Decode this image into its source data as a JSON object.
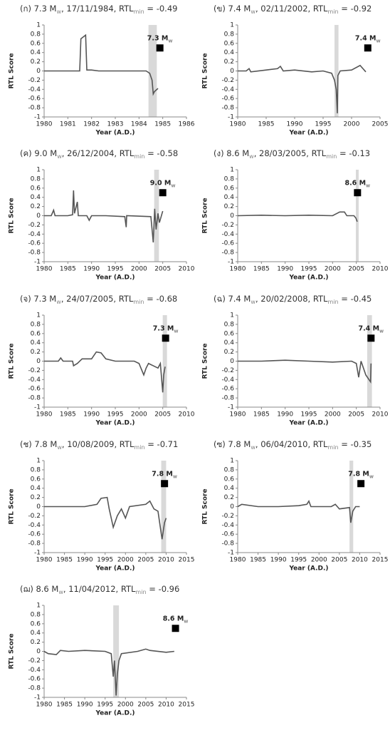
{
  "chart_data": [
    {
      "type": "line",
      "title_parts": [
        "(ก) 7.3 M",
        "w",
        ", 17/11/1984, RTL",
        "min",
        " = -0.49"
      ],
      "xlabel": "Year (A.D.)",
      "ylabel": "RTL Score",
      "xlim": [
        1980,
        1986
      ],
      "xticks": [
        1980,
        1981,
        1982,
        1983,
        1984,
        1985,
        1986
      ],
      "ylim": [
        -1,
        1
      ],
      "yticks": [
        -1,
        -0.8,
        -0.6,
        -0.4,
        -0.2,
        0,
        0.2,
        0.4,
        0.6,
        0.8,
        1
      ],
      "shade": [
        1984.4,
        1984.75
      ],
      "shade_color": "#d9d9d9",
      "event": {
        "x": 1984.88,
        "y": 0.5,
        "label_parts": [
          "7.3 M",
          "w"
        ],
        "color": "#000000"
      },
      "series": [
        {
          "color": "#555555",
          "x": [
            1980,
            1981.5,
            1981.55,
            1981.75,
            1981.8,
            1982,
            1982.3,
            1984.3,
            1984.45,
            1984.55,
            1984.6,
            1984.65,
            1984.8
          ],
          "values": [
            0,
            0,
            0.7,
            0.78,
            0.02,
            0.02,
            0,
            0,
            -0.05,
            -0.2,
            -0.5,
            -0.45,
            -0.38
          ]
        }
      ]
    },
    {
      "type": "line",
      "title_parts": [
        "(ข) 7.4 M",
        "w",
        ", 02/11/2002, RTL",
        "min",
        " = -0.92"
      ],
      "xlabel": "Year (A.D.)",
      "ylabel": "RTL Score",
      "xlim": [
        1980,
        2005
      ],
      "xticks": [
        1980,
        1985,
        1990,
        1995,
        2000,
        2005
      ],
      "ylim": [
        -1,
        1
      ],
      "yticks": [
        -1,
        -0.8,
        -0.6,
        -0.4,
        -0.2,
        0,
        0.2,
        0.4,
        0.6,
        0.8,
        1
      ],
      "shade": [
        1997,
        1997.7
      ],
      "shade_color": "#d9d9d9",
      "event": {
        "x": 2002.85,
        "y": 0.5,
        "label_parts": [
          "7.4 M",
          "w"
        ],
        "color": "#000000"
      },
      "series": [
        {
          "color": "#555555",
          "x": [
            1980,
            1981.5,
            1982,
            1982.3,
            1985,
            1987,
            1987.5,
            1988,
            1990,
            1993,
            1995,
            1996.5,
            1997,
            1997.3,
            1997.5,
            1997.6,
            1998,
            2000,
            2001.5,
            2002,
            2002.5
          ],
          "values": [
            0,
            0,
            0.05,
            -0.02,
            0.02,
            0.05,
            0.1,
            0,
            0.02,
            -0.02,
            0,
            -0.05,
            -0.2,
            -0.4,
            -0.92,
            -0.1,
            0,
            0.02,
            0.12,
            0.05,
            -0.02
          ]
        }
      ]
    },
    {
      "type": "line",
      "title_parts": [
        "(ค) 9.0 M",
        "w",
        ", 26/12/2004, RTL",
        "min",
        " = -0.58"
      ],
      "xlabel": "Year (A.D.)",
      "ylabel": "RTL Score",
      "xlim": [
        1980,
        2010
      ],
      "xticks": [
        1980,
        1985,
        1990,
        1995,
        2000,
        2005,
        2010
      ],
      "ylim": [
        -1,
        1
      ],
      "yticks": [
        -1,
        -0.8,
        -0.6,
        -0.4,
        -0.2,
        0,
        0.2,
        0.4,
        0.6,
        0.8,
        1
      ],
      "shade": [
        2003.2,
        2004.2
      ],
      "shade_color": "#d9d9d9",
      "event": {
        "x": 2005,
        "y": 0.5,
        "label_parts": [
          "9.0 M",
          "w"
        ],
        "color": "#000000"
      },
      "series": [
        {
          "color": "#555555",
          "x": [
            1980,
            1981.5,
            1982,
            1982.3,
            1985,
            1986,
            1986.2,
            1986.4,
            1987,
            1987.2,
            1989,
            1989.5,
            1990,
            1993,
            1997,
            1997.3,
            1997.4,
            2002.5,
            2003,
            2003.3,
            2003.6,
            2004,
            2004.3,
            2005
          ],
          "values": [
            0,
            0,
            0.12,
            0,
            0,
            0.02,
            0.55,
            0.05,
            0.3,
            0,
            0,
            -0.1,
            0,
            0,
            -0.02,
            -0.25,
            0,
            -0.02,
            -0.58,
            0.15,
            -0.3,
            0.05,
            -0.15,
            0.1
          ]
        }
      ]
    },
    {
      "type": "line",
      "title_parts": [
        "(ง) 8.6 M",
        "w",
        ", 28/03/2005, RTL",
        "min",
        " = -0.13"
      ],
      "xlabel": "Year (A.D.)",
      "ylabel": "RTL Score",
      "xlim": [
        1980,
        2010
      ],
      "xticks": [
        1980,
        1985,
        1990,
        1995,
        2000,
        2005,
        2010
      ],
      "ylim": [
        -1,
        1
      ],
      "yticks": [
        -1,
        -0.8,
        -0.6,
        -0.4,
        -0.2,
        0,
        0.2,
        0.4,
        0.6,
        0.8,
        1
      ],
      "shade": [
        2004.9,
        2005.5
      ],
      "shade_color": "#d9d9d9",
      "event": {
        "x": 2005.25,
        "y": 0.5,
        "label_parts": [
          "8.6 M",
          "w"
        ],
        "color": "#000000"
      },
      "series": [
        {
          "color": "#555555",
          "x": [
            1980,
            1985,
            1990,
            1995,
            2000,
            2001.5,
            2002.5,
            2003,
            2004.5,
            2004.9,
            2005.2
          ],
          "values": [
            0,
            0.01,
            0,
            0.01,
            0,
            0.08,
            0.08,
            0,
            0,
            -0.05,
            -0.13
          ]
        }
      ]
    },
    {
      "type": "line",
      "title_parts": [
        "(จ) 7.3 M",
        "w",
        ", 24/07/2005, RTL",
        "min",
        " = -0.68"
      ],
      "xlabel": "Year (A.D.)",
      "ylabel": "RTL Score",
      "xlim": [
        1980,
        2010
      ],
      "xticks": [
        1980,
        1985,
        1990,
        1995,
        2000,
        2005,
        2010
      ],
      "ylim": [
        -1,
        1
      ],
      "yticks": [
        -1,
        -0.8,
        -0.6,
        -0.4,
        -0.2,
        0,
        0.2,
        0.4,
        0.6,
        0.8,
        1
      ],
      "shade": [
        2005,
        2005.9
      ],
      "shade_color": "#d9d9d9",
      "event": {
        "x": 2005.6,
        "y": 0.5,
        "label_parts": [
          "7.3 M",
          "w"
        ],
        "color": "#000000"
      },
      "series": [
        {
          "color": "#555555",
          "x": [
            1980,
            1983,
            1983.5,
            1984,
            1986,
            1986.2,
            1987,
            1988,
            1990,
            1991,
            1992,
            1993,
            1995,
            1999,
            2000,
            2001,
            2001.5,
            2002,
            2003,
            2004,
            2004.5,
            2005,
            2005.2,
            2005.5
          ],
          "values": [
            0,
            0,
            0.07,
            0,
            0,
            -0.1,
            -0.05,
            0.05,
            0.05,
            0.2,
            0.18,
            0.05,
            0,
            0,
            -0.05,
            -0.3,
            -0.15,
            -0.05,
            -0.1,
            -0.15,
            -0.05,
            -0.68,
            -0.3,
            -0.12
          ]
        }
      ]
    },
    {
      "type": "line",
      "title_parts": [
        "(ฉ) 7.4 M",
        "w",
        ", 20/02/2008, RTL",
        "min",
        " = -0.45"
      ],
      "xlabel": "Year (A.D.)",
      "ylabel": "RTL Score",
      "xlim": [
        1980,
        2010
      ],
      "xticks": [
        1980,
        1985,
        1990,
        1995,
        2000,
        2005,
        2010
      ],
      "ylim": [
        -1,
        1
      ],
      "yticks": [
        -1,
        -0.8,
        -0.6,
        -0.4,
        -0.2,
        0,
        0.2,
        0.4,
        0.6,
        0.8,
        1
      ],
      "shade": [
        2007.3,
        2008.3
      ],
      "shade_color": "#d9d9d9",
      "event": {
        "x": 2008.1,
        "y": 0.5,
        "label_parts": [
          "7.4 M",
          "w"
        ],
        "color": "#000000"
      },
      "series": [
        {
          "color": "#555555",
          "x": [
            1980,
            1985,
            1990,
            1995,
            2000,
            2004,
            2005,
            2005.5,
            2006,
            2007,
            2008,
            2008.1
          ],
          "values": [
            0,
            0,
            0.02,
            0,
            -0.02,
            0,
            -0.05,
            -0.35,
            0,
            -0.3,
            -0.45,
            -0.05
          ]
        }
      ]
    },
    {
      "type": "line",
      "title_parts": [
        "(ช) 7.8 M",
        "w",
        ", 10/08/2009, RTL",
        "min",
        " = -0.71"
      ],
      "xlabel": "Year (A.D.)",
      "ylabel": "RTL Score",
      "xlim": [
        1980,
        2015
      ],
      "xticks": [
        1980,
        1985,
        1990,
        1995,
        2000,
        2005,
        2010,
        2015
      ],
      "ylim": [
        -1,
        1
      ],
      "yticks": [
        -1,
        -0.8,
        -0.6,
        -0.4,
        -0.2,
        0,
        0.2,
        0.4,
        0.6,
        0.8,
        1
      ],
      "shade": [
        2008.8,
        2010
      ],
      "shade_color": "#d9d9d9",
      "event": {
        "x": 2009.6,
        "y": 0.5,
        "label_parts": [
          "7.8 M",
          "w"
        ],
        "color": "#000000"
      },
      "series": [
        {
          "color": "#555555",
          "x": [
            1980,
            1990,
            1993,
            1994,
            1995.5,
            1996,
            1997,
            1998,
            1999,
            2000,
            2001,
            2005,
            2006,
            2007,
            2008,
            2009,
            2009.6,
            2010
          ],
          "values": [
            0,
            0,
            0.05,
            0.18,
            0.2,
            -0.05,
            -0.45,
            -0.2,
            -0.05,
            -0.25,
            0,
            0.05,
            0.12,
            -0.05,
            -0.1,
            -0.71,
            -0.35,
            -0.25
          ]
        }
      ]
    },
    {
      "type": "line",
      "title_parts": [
        "(ซ) 7.8 M",
        "w",
        ", 06/04/2010, RTL",
        "min",
        " = -0.35"
      ],
      "xlabel": "Year (A.D.)",
      "ylabel": "RTL Score",
      "xlim": [
        1980,
        2015
      ],
      "xticks": [
        1980,
        1985,
        1990,
        1995,
        2000,
        2005,
        2010,
        2015
      ],
      "ylim": [
        -1,
        1
      ],
      "yticks": [
        -1,
        -0.8,
        -0.6,
        -0.4,
        -0.2,
        0,
        0.2,
        0.4,
        0.6,
        0.8,
        1
      ],
      "shade": [
        2007.5,
        2008.4
      ],
      "shade_color": "#d9d9d9",
      "event": {
        "x": 2010.3,
        "y": 0.5,
        "label_parts": [
          "7.8 M",
          "w"
        ],
        "color": "#000000"
      },
      "series": [
        {
          "color": "#555555",
          "x": [
            1980,
            1981,
            1985,
            1990,
            1995,
            1997,
            1997.5,
            1998,
            2003,
            2004,
            2005,
            2007.5,
            2007.8,
            2008.3,
            2009,
            2010
          ],
          "values": [
            0,
            0.05,
            0,
            0,
            0.02,
            0.05,
            0.12,
            0,
            0,
            0.05,
            -0.05,
            -0.02,
            -0.35,
            -0.1,
            0,
            0
          ]
        }
      ]
    },
    {
      "type": "line",
      "title_parts": [
        "(ฌ) 8.6 M",
        "w",
        ", 11/04/2012, RTL",
        "min",
        " = -0.96"
      ],
      "xlabel": "Year (A.D.)",
      "ylabel": "RTL Score",
      "xlim": [
        1980,
        2015
      ],
      "xticks": [
        1980,
        1985,
        1990,
        1995,
        2000,
        2005,
        2010,
        2015
      ],
      "ylim": [
        -1,
        1
      ],
      "yticks": [
        -1,
        -0.8,
        -0.6,
        -0.4,
        -0.2,
        0,
        0.2,
        0.4,
        0.6,
        0.8,
        1
      ],
      "shade": [
        1997,
        1998.4
      ],
      "shade_color": "#d9d9d9",
      "event": {
        "x": 2012.3,
        "y": 0.5,
        "label_parts": [
          "8.6 M",
          "w"
        ],
        "color": "#000000"
      },
      "series": [
        {
          "color": "#555555",
          "x": [
            1980,
            1981,
            1983,
            1984,
            1986,
            1990,
            1995,
            1996.5,
            1997,
            1997.3,
            1997.7,
            1998,
            1998.4,
            1999,
            2003,
            2005,
            2006,
            2010,
            2012
          ],
          "values": [
            0,
            -0.05,
            -0.07,
            0.02,
            0,
            0.02,
            0,
            -0.05,
            -0.55,
            -0.2,
            -0.96,
            -0.5,
            -0.2,
            -0.05,
            0,
            0.05,
            0.02,
            -0.02,
            0
          ]
        }
      ]
    }
  ]
}
